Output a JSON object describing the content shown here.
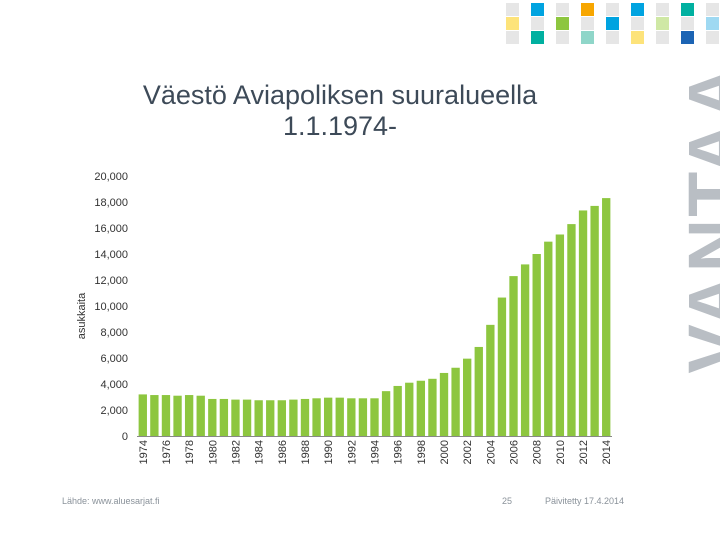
{
  "brand": {
    "watermark": "VANTAA",
    "colors": [
      "#f7a600",
      "#fde37a",
      "#8dc63f",
      "#cfe8a5",
      "#00a3e0",
      "#9fd9f2",
      "#00b0a0",
      "#8fd6c9",
      "#1c64b4",
      "#e6e6e6"
    ]
  },
  "slide": {
    "title_line1": "Väestö Aviapoliksen suuralueella",
    "title_line2": "1.1.1974-",
    "source": "Lähde: www.aluesarjat.fi",
    "page_number": "25",
    "updated": "Päivitetty 17.4.2014"
  },
  "chart_data": {
    "type": "bar",
    "title": "Väestö Aviapoliksen suuralueella 1.1.1974-",
    "xlabel": "",
    "ylabel": "asukkaita",
    "ylim": [
      0,
      20000
    ],
    "yticks": [
      0,
      2000,
      4000,
      6000,
      8000,
      10000,
      12000,
      14000,
      16000,
      18000,
      20000
    ],
    "ytick_labels": [
      "0",
      "2,000",
      "4,000",
      "6,000",
      "8,000",
      "10,000",
      "12,000",
      "14,000",
      "16,000",
      "18,000",
      "20,000"
    ],
    "x_tick_labels": [
      "1974",
      "1976",
      "1978",
      "1980",
      "1982",
      "1984",
      "1986",
      "1988",
      "1990",
      "1992",
      "1994",
      "1996",
      "1998",
      "2000",
      "2002",
      "2004",
      "2006",
      "2008",
      "2010",
      "2012",
      "2014"
    ],
    "categories": [
      "1974",
      "1975",
      "1976",
      "1977",
      "1978",
      "1979",
      "1980",
      "1981",
      "1982",
      "1983",
      "1984",
      "1985",
      "1986",
      "1987",
      "1988",
      "1989",
      "1990",
      "1991",
      "1992",
      "1993",
      "1994",
      "1995",
      "1996",
      "1997",
      "1998",
      "1999",
      "2000",
      "2001",
      "2002",
      "2003",
      "2004",
      "2005",
      "2006",
      "2007",
      "2008",
      "2009",
      "2010",
      "2011",
      "2012",
      "2013",
      "2014"
    ],
    "values": [
      3200,
      3150,
      3150,
      3100,
      3150,
      3100,
      2850,
      2850,
      2800,
      2800,
      2750,
      2750,
      2750,
      2800,
      2850,
      2900,
      2950,
      2950,
      2900,
      2900,
      2900,
      3450,
      3850,
      4100,
      4250,
      4400,
      4850,
      5250,
      5950,
      6850,
      8550,
      10650,
      12300,
      13200,
      14000,
      14950,
      15500,
      16300,
      17350,
      17700,
      18300
    ],
    "bar_color": "#8dc63f",
    "grid": false,
    "legend": "none"
  }
}
